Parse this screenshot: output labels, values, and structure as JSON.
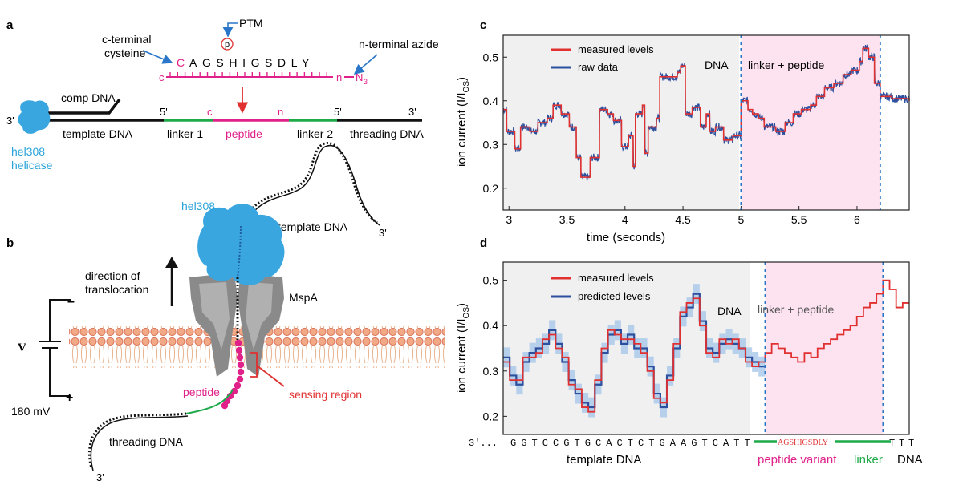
{
  "panels": {
    "a": "a",
    "b": "b",
    "c": "c",
    "d": "d"
  },
  "panel_a": {
    "ptm": "PTM",
    "p_symbol": "p",
    "c_terminal_cysteine": [
      "c-terminal",
      "cysteine"
    ],
    "n_terminal_azide": "n-terminal azide",
    "sequence_first": "C",
    "sequence_rest": "AGSHIGSDLY",
    "chain_c": "c",
    "chain_n": "n",
    "azide": "N",
    "azide_sub": "3",
    "comp_dna": "comp DNA",
    "prime3_left": "3'",
    "prime5_a": "5'",
    "prime5_b": "5'",
    "prime3_right": "3'",
    "strand_c": "c",
    "strand_n": "n",
    "template_dna": "template DNA",
    "linker1": "linker 1",
    "peptide": "peptide",
    "linker2": "linker 2",
    "threading_dna": "threading DNA",
    "helicase": [
      "hel308",
      "helicase"
    ]
  },
  "panel_b": {
    "hel308": "hel308",
    "template_dna": "template DNA",
    "prime3_top": "3'",
    "direction": [
      "direction of",
      "translocation"
    ],
    "mspa": "MspA",
    "minus": "–",
    "plus": "+",
    "voltage_symbol": "V",
    "voltage": "180 mV",
    "peptide": "peptide",
    "sensing_region": "sensing region",
    "threading_dna": "threading DNA",
    "prime3_bottom": "3'"
  },
  "colors": {
    "magenta": "#e0218a",
    "green": "#1faa4a",
    "blue_label": "#29a3d9",
    "red_series": "#e03030",
    "blue_series": "#2c4f9e",
    "band": "#a8c8ea",
    "pink_region": "#fde3f0",
    "gray_region": "#f0f0f0"
  },
  "chart_data": [
    {
      "type": "line",
      "panel": "c",
      "xlabel": "time (seconds)",
      "ylabel": "ion current (I/I",
      "ylabel_sub": "OS",
      "xlim": [
        2.95,
        6.45
      ],
      "ylim": [
        0.15,
        0.55
      ],
      "xticks": [
        3,
        3.5,
        4,
        4.5,
        5,
        5.5,
        6
      ],
      "xtick_labels": [
        "3",
        "3.5",
        "4",
        "4.5",
        "5",
        "5.5",
        "6"
      ],
      "yticks": [
        0.2,
        0.3,
        0.4,
        0.5
      ],
      "ytick_labels": [
        "0.2",
        "0.3",
        "0.4",
        "0.5"
      ],
      "region_labels": {
        "dna": "DNA",
        "linker_peptide": "linker + peptide"
      },
      "boundaries": [
        5.0,
        6.2
      ],
      "legend": [
        "measured levels",
        "raw data"
      ],
      "series": [
        {
          "name": "measured levels",
          "steps": [
            [
              2.95,
              0.38
            ],
            [
              2.98,
              0.33
            ],
            [
              3.05,
              0.29
            ],
            [
              3.1,
              0.34
            ],
            [
              3.18,
              0.33
            ],
            [
              3.25,
              0.35
            ],
            [
              3.33,
              0.36
            ],
            [
              3.38,
              0.39
            ],
            [
              3.45,
              0.37
            ],
            [
              3.52,
              0.34
            ],
            [
              3.58,
              0.27
            ],
            [
              3.62,
              0.225
            ],
            [
              3.7,
              0.27
            ],
            [
              3.78,
              0.38
            ],
            [
              3.85,
              0.37
            ],
            [
              3.9,
              0.355
            ],
            [
              3.97,
              0.295
            ],
            [
              4.03,
              0.32
            ],
            [
              4.07,
              0.25
            ],
            [
              4.09,
              0.37
            ],
            [
              4.15,
              0.39
            ],
            [
              4.17,
              0.28
            ],
            [
              4.2,
              0.34
            ],
            [
              4.27,
              0.36
            ],
            [
              4.3,
              0.455
            ],
            [
              4.45,
              0.465
            ],
            [
              4.48,
              0.48
            ],
            [
              4.52,
              0.37
            ],
            [
              4.58,
              0.385
            ],
            [
              4.65,
              0.34
            ],
            [
              4.7,
              0.37
            ],
            [
              4.73,
              0.33
            ],
            [
              4.78,
              0.34
            ],
            [
              4.85,
              0.31
            ],
            [
              4.93,
              0.32
            ],
            [
              5.0,
              0.4
            ],
            [
              5.06,
              0.38
            ],
            [
              5.1,
              0.37
            ],
            [
              5.15,
              0.36
            ],
            [
              5.2,
              0.34
            ],
            [
              5.3,
              0.33
            ],
            [
              5.38,
              0.35
            ],
            [
              5.45,
              0.37
            ],
            [
              5.52,
              0.38
            ],
            [
              5.6,
              0.39
            ],
            [
              5.65,
              0.41
            ],
            [
              5.72,
              0.43
            ],
            [
              5.8,
              0.44
            ],
            [
              5.88,
              0.46
            ],
            [
              5.95,
              0.47
            ],
            [
              6.02,
              0.49
            ],
            [
              6.05,
              0.52
            ],
            [
              6.1,
              0.5
            ],
            [
              6.15,
              0.44
            ],
            [
              6.2,
              0.41
            ],
            [
              6.3,
              0.405
            ],
            [
              6.45,
              0.4
            ]
          ]
        },
        {
          "name": "raw data",
          "noise": 0.009
        }
      ]
    },
    {
      "type": "line",
      "panel": "d",
      "xlabel": "",
      "ylabel": "ion current (I/I",
      "ylabel_sub": "OS",
      "ylim": [
        0.16,
        0.54
      ],
      "yticks": [
        0.2,
        0.3,
        0.4,
        0.5
      ],
      "ytick_labels": [
        "0.2",
        "0.3",
        "0.4",
        "0.5"
      ],
      "region_labels": {
        "dna": "DNA",
        "linker_peptide": "linker + peptide"
      },
      "legend": [
        "measured levels",
        "predicted levels"
      ],
      "n_steps": 62,
      "boundaries": [
        40,
        58
      ],
      "series": [
        {
          "name": "measured levels",
          "values": [
            0.32,
            0.28,
            0.28,
            0.33,
            0.33,
            0.34,
            0.37,
            0.38,
            0.35,
            0.33,
            0.27,
            0.26,
            0.22,
            0.21,
            0.28,
            0.35,
            0.39,
            0.38,
            0.37,
            0.37,
            0.36,
            0.34,
            0.3,
            0.24,
            0.23,
            0.28,
            0.36,
            0.43,
            0.45,
            0.46,
            0.4,
            0.34,
            0.33,
            0.37,
            0.36,
            0.37,
            0.35,
            0.32,
            0.31,
            0.32,
            0.34,
            0.36,
            0.35,
            0.34,
            0.33,
            0.32,
            0.34,
            0.33,
            0.35,
            0.36,
            0.37,
            0.38,
            0.39,
            0.4,
            0.42,
            0.44,
            0.45,
            0.47,
            0.5,
            0.48,
            0.44,
            0.45
          ]
        },
        {
          "name": "predicted levels",
          "values": [
            0.33,
            0.29,
            0.27,
            0.32,
            0.34,
            0.35,
            0.36,
            0.39,
            0.36,
            0.32,
            0.28,
            0.25,
            0.23,
            0.22,
            0.27,
            0.34,
            0.38,
            0.39,
            0.36,
            0.38,
            0.35,
            0.35,
            0.31,
            0.25,
            0.22,
            0.29,
            0.35,
            0.42,
            0.44,
            0.47,
            0.41,
            0.35,
            0.34,
            0.36,
            0.37,
            0.36,
            0.35,
            0.33,
            0.32,
            0.31
          ]
        }
      ],
      "sequence_prefix": "3'...",
      "sequence": [
        "G",
        "G",
        "T",
        "C",
        "C",
        "G",
        "T",
        "G",
        "C",
        "A",
        "C",
        "T",
        "C",
        "T",
        "G",
        "A",
        "A",
        "G",
        "T",
        "C",
        "A",
        "T",
        "T"
      ],
      "sequence_suffix": [
        "T",
        "T",
        "T"
      ],
      "peptide_variant_seq": "AGSHIGSDLY",
      "bottom_labels": {
        "template": "template DNA",
        "peptide_variant": "peptide variant",
        "linker": "linker",
        "dna": "DNA"
      }
    }
  ]
}
